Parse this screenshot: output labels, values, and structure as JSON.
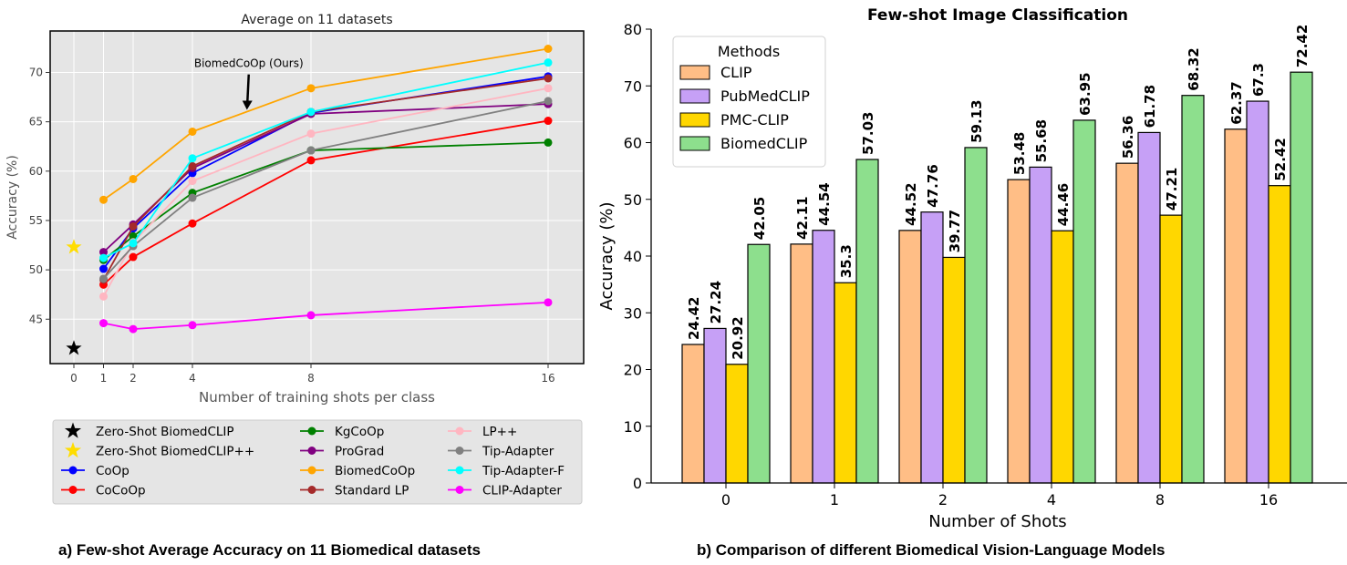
{
  "captions": {
    "left": "a) Few-shot Average Accuracy on 11 Biomedical datasets",
    "right": "b) Comparison of different Biomedical Vision-Language Models"
  },
  "chart_data": [
    {
      "type": "line",
      "title": "Average on 11 datasets",
      "xlabel": "Number of training shots per class",
      "ylabel": "Accuracy (%)",
      "x_ticks": [
        0,
        1,
        2,
        4,
        8,
        16
      ],
      "y_ticks": [
        45,
        50,
        55,
        60,
        65,
        70
      ],
      "xlim": [
        -0.8,
        17.2
      ],
      "ylim": [
        40.5,
        74.2
      ],
      "grid": true,
      "background": "#e5e5e5",
      "annotation": {
        "text": "BiomedCoOp (Ours)",
        "arrow_from": [
          5.9,
          69.8
        ],
        "arrow_to": [
          5.9,
          66.4
        ]
      },
      "legend_placement": "below",
      "single_points": [
        {
          "name": "Zero-Shot BiomedCLIP",
          "x": 0,
          "y": 42.05,
          "color": "#000000",
          "marker": "star"
        },
        {
          "name": "Zero-Shot BiomedCLIP++",
          "x": 0,
          "y": 52.3,
          "color": "#ffdd00",
          "marker": "star"
        }
      ],
      "series": [
        {
          "name": "CoOp",
          "color": "#0000ff",
          "x": [
            1,
            2,
            4,
            8,
            16
          ],
          "y": [
            50.1,
            54.2,
            59.8,
            65.9,
            69.6
          ]
        },
        {
          "name": "CoCoOp",
          "color": "#ff0000",
          "x": [
            1,
            2,
            4,
            8,
            16
          ],
          "y": [
            48.5,
            51.3,
            54.7,
            61.1,
            65.1
          ]
        },
        {
          "name": "KgCoOp",
          "color": "#008000",
          "x": [
            1,
            2,
            4,
            8,
            16
          ],
          "y": [
            51.0,
            53.4,
            57.8,
            62.1,
            62.9
          ]
        },
        {
          "name": "ProGrad",
          "color": "#800080",
          "x": [
            1,
            2,
            4,
            8,
            16
          ],
          "y": [
            51.8,
            54.6,
            60.3,
            65.8,
            66.8
          ]
        },
        {
          "name": "BiomedCoOp",
          "color": "#ffa500",
          "x": [
            1,
            2,
            4,
            8,
            16
          ],
          "y": [
            57.1,
            59.2,
            64.0,
            68.4,
            72.4
          ]
        },
        {
          "name": "Standard LP",
          "color": "#a52a2a",
          "x": [
            1,
            2,
            4,
            8,
            16
          ],
          "y": [
            49.0,
            54.4,
            60.5,
            66.0,
            69.4
          ]
        },
        {
          "name": "LP++",
          "color": "#ffb6c1",
          "x": [
            1,
            2,
            4,
            8,
            16
          ],
          "y": [
            47.3,
            52.8,
            59.0,
            63.8,
            68.4
          ]
        },
        {
          "name": "Tip-Adapter",
          "color": "#808080",
          "x": [
            1,
            2,
            4,
            8,
            16
          ],
          "y": [
            49.1,
            52.4,
            57.3,
            62.1,
            67.1
          ]
        },
        {
          "name": "Tip-Adapter-F",
          "color": "#00ffff",
          "x": [
            1,
            2,
            4,
            8,
            16
          ],
          "y": [
            51.2,
            52.7,
            61.3,
            66.0,
            71.0
          ]
        },
        {
          "name": "CLIP-Adapter",
          "color": "#ff00ff",
          "x": [
            1,
            2,
            4,
            8,
            16
          ],
          "y": [
            44.6,
            44.0,
            44.4,
            45.4,
            46.7
          ]
        }
      ],
      "legend_entries": [
        {
          "name": "Zero-Shot BiomedCLIP",
          "color": "#000000",
          "marker": "star"
        },
        {
          "name": "Zero-Shot BiomedCLIP++",
          "color": "#ffdd00",
          "marker": "star"
        },
        {
          "name": "CoOp",
          "color": "#0000ff",
          "marker": "line"
        },
        {
          "name": "CoCoOp",
          "color": "#ff0000",
          "marker": "line"
        },
        {
          "name": "KgCoOp",
          "color": "#008000",
          "marker": "line"
        },
        {
          "name": "ProGrad",
          "color": "#800080",
          "marker": "line"
        },
        {
          "name": "BiomedCoOp",
          "color": "#ffa500",
          "marker": "line"
        },
        {
          "name": "Standard LP",
          "color": "#a52a2a",
          "marker": "line"
        },
        {
          "name": "LP++",
          "color": "#ffb6c1",
          "marker": "line"
        },
        {
          "name": "Tip-Adapter",
          "color": "#808080",
          "marker": "line"
        },
        {
          "name": "Tip-Adapter-F",
          "color": "#00ffff",
          "marker": "line"
        },
        {
          "name": "CLIP-Adapter",
          "color": "#ff00ff",
          "marker": "line"
        }
      ]
    },
    {
      "type": "bar",
      "title": "Few-shot Image Classification",
      "xlabel": "Number of Shots",
      "ylabel": "Accuracy (%)",
      "categories": [
        "0",
        "1",
        "2",
        "4",
        "8",
        "16"
      ],
      "y_ticks": [
        0,
        10,
        20,
        30,
        40,
        50,
        60,
        70,
        80
      ],
      "ylim": [
        0,
        80
      ],
      "legend_title": "Methods",
      "legend_placement": "top-left",
      "series": [
        {
          "name": "CLIP",
          "color": "#ffbe86",
          "values": [
            24.42,
            42.11,
            44.52,
            53.48,
            56.36,
            62.37
          ],
          "labels": [
            "24.42",
            "42.11",
            "44.52",
            "53.48",
            "56.36",
            "62.37"
          ]
        },
        {
          "name": "PubMedCLIP",
          "color": "#c6a0f6",
          "values": [
            27.24,
            44.54,
            47.76,
            55.68,
            61.78,
            67.3
          ],
          "labels": [
            "27.24",
            "44.54",
            "47.76",
            "55.68",
            "61.78",
            "67.3"
          ]
        },
        {
          "name": "PMC-CLIP",
          "color": "#ffd700",
          "values": [
            20.92,
            35.3,
            39.77,
            44.46,
            47.21,
            52.42
          ],
          "labels": [
            "20.92",
            "35.3",
            "39.77",
            "44.46",
            "47.21",
            "52.42"
          ]
        },
        {
          "name": "BiomedCLIP",
          "color": "#8ddf8d",
          "values": [
            42.05,
            57.03,
            59.13,
            63.95,
            68.32,
            72.42
          ],
          "labels": [
            "42.05",
            "57.03",
            "59.13",
            "63.95",
            "68.32",
            "72.42"
          ]
        }
      ]
    }
  ]
}
